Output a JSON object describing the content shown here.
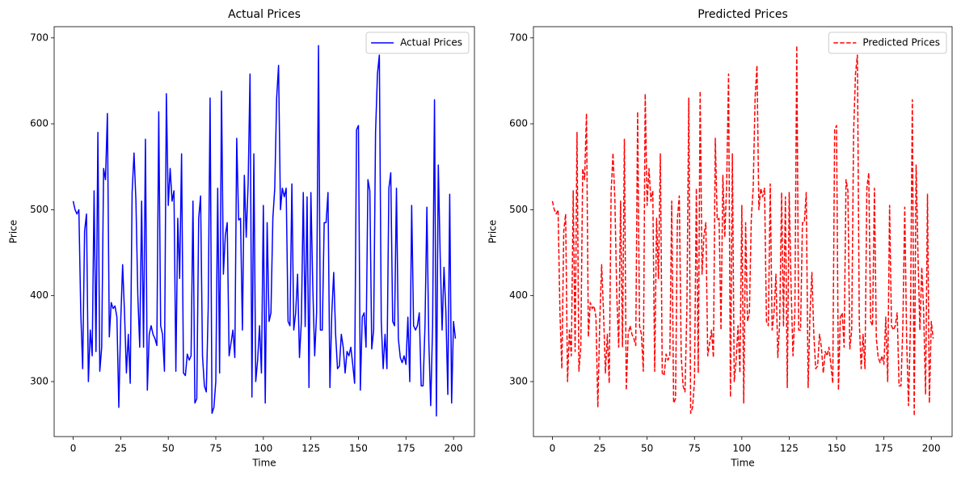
{
  "chart_data": [
    {
      "type": "line",
      "title": "Actual Prices",
      "x_label": "Time",
      "y_label": "Price",
      "x": [
        0,
        1,
        2,
        3,
        4,
        5,
        6,
        7,
        8,
        9,
        10,
        11,
        12,
        13,
        14,
        15,
        16,
        17,
        18,
        19,
        20,
        21,
        22,
        23,
        24,
        25,
        26,
        27,
        28,
        29,
        30,
        31,
        32,
        33,
        34,
        35,
        36,
        37,
        38,
        39,
        40,
        41,
        42,
        43,
        44,
        45,
        46,
        47,
        48,
        49,
        50,
        51,
        52,
        53,
        54,
        55,
        56,
        57,
        58,
        59,
        60,
        61,
        62,
        63,
        64,
        65,
        66,
        67,
        68,
        69,
        70,
        71,
        72,
        73,
        74,
        75,
        76,
        77,
        78,
        79,
        80,
        81,
        82,
        83,
        84,
        85,
        86,
        87,
        88,
        89,
        90,
        91,
        92,
        93,
        94,
        95,
        96,
        97,
        98,
        99,
        100,
        101,
        102,
        103,
        104,
        105,
        106,
        107,
        108,
        109,
        110,
        111,
        112,
        113,
        114,
        115,
        116,
        117,
        118,
        119,
        120,
        121,
        122,
        123,
        124,
        125,
        126,
        127,
        128,
        129,
        130,
        131,
        132,
        133,
        134,
        135,
        136,
        137,
        138,
        139,
        140,
        141,
        142,
        143,
        144,
        145,
        146,
        147,
        148,
        149,
        150,
        151,
        152,
        153,
        154,
        155,
        156,
        157,
        158,
        159,
        160,
        161,
        162,
        163,
        164,
        165,
        166,
        167,
        168,
        169,
        170,
        171,
        172,
        173,
        174,
        175,
        176,
        177,
        178,
        179,
        180,
        181,
        182,
        183,
        184,
        185,
        186,
        187,
        188,
        189,
        190,
        191,
        192,
        193,
        194,
        195,
        196,
        197,
        198,
        199,
        200,
        201
      ],
      "series": [
        {
          "name": "Actual Prices",
          "color": "#0000ff",
          "linestyle": "solid",
          "values": [
            510,
            500,
            495,
            500,
            380,
            315,
            475,
            495,
            300,
            360,
            330,
            522,
            335,
            590,
            312,
            340,
            548,
            535,
            612,
            352,
            392,
            385,
            388,
            375,
            270,
            370,
            436,
            380,
            310,
            355,
            298,
            520,
            566,
            510,
            400,
            340,
            510,
            340,
            582,
            290,
            355,
            365,
            355,
            350,
            342,
            614,
            365,
            355,
            312,
            635,
            505,
            548,
            510,
            522,
            312,
            490,
            420,
            565,
            310,
            307,
            332,
            325,
            330,
            510,
            275,
            280,
            490,
            516,
            330,
            295,
            288,
            385,
            630,
            263,
            270,
            300,
            525,
            310,
            638,
            425,
            470,
            485,
            330,
            345,
            360,
            328,
            583,
            488,
            490,
            360,
            540,
            468,
            530,
            658,
            282,
            565,
            300,
            325,
            365,
            310,
            505,
            275,
            485,
            370,
            380,
            490,
            525,
            630,
            668,
            500,
            525,
            515,
            525,
            370,
            365,
            530,
            360,
            380,
            425,
            328,
            370,
            520,
            364,
            515,
            293,
            520,
            410,
            330,
            380,
            691,
            360,
            360,
            485,
            485,
            520,
            293,
            380,
            427,
            355,
            315,
            318,
            355,
            340,
            310,
            335,
            330,
            340,
            320,
            298,
            593,
            598,
            290,
            375,
            380,
            340,
            535,
            522,
            338,
            360,
            590,
            658,
            680,
            370,
            315,
            355,
            315,
            525,
            543,
            370,
            365,
            525,
            350,
            328,
            322,
            330,
            320,
            375,
            300,
            505,
            365,
            360,
            365,
            380,
            295,
            295,
            365,
            503,
            348,
            272,
            365,
            628,
            260,
            552,
            445,
            360,
            433,
            380,
            285,
            518,
            275,
            370,
            350
          ]
        }
      ],
      "xlim": [
        -10,
        211
      ],
      "ylim": [
        236,
        713
      ],
      "xticks": [
        0,
        25,
        50,
        75,
        100,
        125,
        150,
        175,
        200
      ],
      "yticks": [
        300,
        400,
        500,
        600,
        700
      ],
      "legend": "upper right"
    },
    {
      "type": "line",
      "title": "Predicted Prices",
      "x_label": "Time",
      "y_label": "Price",
      "x": [
        0,
        1,
        2,
        3,
        4,
        5,
        6,
        7,
        8,
        9,
        10,
        11,
        12,
        13,
        14,
        15,
        16,
        17,
        18,
        19,
        20,
        21,
        22,
        23,
        24,
        25,
        26,
        27,
        28,
        29,
        30,
        31,
        32,
        33,
        34,
        35,
        36,
        37,
        38,
        39,
        40,
        41,
        42,
        43,
        44,
        45,
        46,
        47,
        48,
        49,
        50,
        51,
        52,
        53,
        54,
        55,
        56,
        57,
        58,
        59,
        60,
        61,
        62,
        63,
        64,
        65,
        66,
        67,
        68,
        69,
        70,
        71,
        72,
        73,
        74,
        75,
        76,
        77,
        78,
        79,
        80,
        81,
        82,
        83,
        84,
        85,
        86,
        87,
        88,
        89,
        90,
        91,
        92,
        93,
        94,
        95,
        96,
        97,
        98,
        99,
        100,
        101,
        102,
        103,
        104,
        105,
        106,
        107,
        108,
        109,
        110,
        111,
        112,
        113,
        114,
        115,
        116,
        117,
        118,
        119,
        120,
        121,
        122,
        123,
        124,
        125,
        126,
        127,
        128,
        129,
        130,
        131,
        132,
        133,
        134,
        135,
        136,
        137,
        138,
        139,
        140,
        141,
        142,
        143,
        144,
        145,
        146,
        147,
        148,
        149,
        150,
        151,
        152,
        153,
        154,
        155,
        156,
        157,
        158,
        159,
        160,
        161,
        162,
        163,
        164,
        165,
        166,
        167,
        168,
        169,
        170,
        171,
        172,
        173,
        174,
        175,
        176,
        177,
        178,
        179,
        180,
        181,
        182,
        183,
        184,
        185,
        186,
        187,
        188,
        189,
        190,
        191,
        192,
        193,
        194,
        195,
        196,
        197,
        198,
        199,
        200,
        201
      ],
      "series": [
        {
          "name": "Predicted Prices",
          "color": "#ff0000",
          "linestyle": "dashed",
          "values": [
            510,
            500,
            495,
            500,
            380,
            315,
            475,
            495,
            300,
            360,
            330,
            522,
            335,
            590,
            312,
            340,
            548,
            535,
            612,
            352,
            392,
            385,
            388,
            375,
            270,
            370,
            436,
            380,
            310,
            355,
            298,
            520,
            566,
            510,
            400,
            340,
            510,
            340,
            582,
            290,
            355,
            365,
            355,
            350,
            342,
            614,
            365,
            355,
            312,
            635,
            505,
            548,
            510,
            522,
            312,
            490,
            420,
            565,
            310,
            307,
            332,
            325,
            330,
            510,
            275,
            280,
            490,
            516,
            330,
            295,
            288,
            385,
            630,
            263,
            270,
            300,
            525,
            310,
            638,
            425,
            470,
            485,
            330,
            345,
            360,
            328,
            583,
            488,
            490,
            360,
            540,
            468,
            530,
            658,
            282,
            565,
            300,
            325,
            365,
            310,
            505,
            275,
            485,
            370,
            380,
            490,
            525,
            630,
            668,
            500,
            525,
            515,
            525,
            370,
            365,
            530,
            360,
            380,
            425,
            328,
            370,
            520,
            364,
            515,
            293,
            520,
            410,
            330,
            380,
            691,
            360,
            360,
            485,
            485,
            520,
            293,
            380,
            427,
            355,
            315,
            318,
            355,
            340,
            310,
            335,
            330,
            340,
            320,
            298,
            593,
            598,
            290,
            375,
            380,
            340,
            535,
            522,
            338,
            360,
            590,
            658,
            680,
            370,
            315,
            355,
            315,
            525,
            543,
            370,
            365,
            525,
            350,
            328,
            322,
            330,
            320,
            375,
            300,
            505,
            365,
            360,
            365,
            380,
            295,
            295,
            365,
            503,
            348,
            272,
            365,
            628,
            260,
            552,
            445,
            360,
            433,
            380,
            285,
            518,
            275,
            370,
            350
          ]
        }
      ],
      "xlim": [
        -10,
        211
      ],
      "ylim": [
        236,
        713
      ],
      "xticks": [
        0,
        25,
        50,
        75,
        100,
        125,
        150,
        175,
        200
      ],
      "yticks": [
        300,
        400,
        500,
        600,
        700
      ],
      "legend": "upper right"
    }
  ]
}
